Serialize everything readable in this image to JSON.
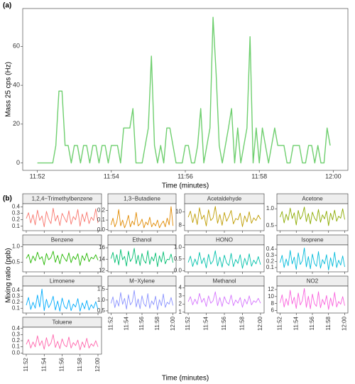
{
  "chart_data": [
    {
      "type": "line",
      "panel_label": "(a)",
      "x_label": "Time (minutes)",
      "y_label": "Mass 25 cps (Hz)",
      "categories": [
        "11:52",
        null,
        null,
        null,
        null,
        null,
        null,
        null,
        null,
        null,
        null,
        null,
        null,
        null,
        null,
        null,
        null,
        null,
        null,
        null,
        null,
        null,
        null,
        null,
        "11:54",
        null,
        null,
        null,
        null,
        null,
        null,
        null,
        null,
        null,
        null,
        null,
        null,
        null,
        null,
        null,
        null,
        null,
        null,
        null,
        null,
        null,
        null,
        null,
        "11:56",
        null,
        null,
        null,
        null,
        null,
        null,
        null,
        null,
        null,
        null,
        null,
        null,
        null,
        null,
        null,
        null,
        null,
        null,
        null,
        null,
        null,
        null,
        null,
        "11:58",
        null,
        null,
        null,
        null,
        null,
        null,
        null,
        null,
        null,
        null,
        null,
        null,
        null,
        null,
        null,
        null,
        null,
        null,
        null,
        null,
        null,
        null,
        null,
        "12:00"
      ],
      "series": [
        {
          "color": "#6fcf6f",
          "values": [
            0,
            0,
            0,
            0,
            0,
            0,
            9,
            37,
            37,
            9,
            9,
            0,
            9,
            9,
            0,
            9,
            9,
            0,
            9,
            9,
            0,
            9,
            9,
            0,
            9,
            9,
            9,
            0,
            18,
            18,
            18,
            28,
            0,
            0,
            0,
            9,
            18,
            55,
            9,
            0,
            9,
            0,
            18,
            18,
            9,
            0,
            0,
            0,
            9,
            9,
            0,
            0,
            9,
            28,
            0,
            9,
            18,
            75,
            46,
            9,
            0,
            9,
            18,
            28,
            0,
            18,
            0,
            9,
            18,
            65,
            0,
            18,
            0,
            18,
            9,
            0,
            9,
            18,
            9,
            9,
            9,
            0,
            0,
            9,
            9,
            9,
            0,
            0,
            9,
            9,
            0,
            9,
            0,
            0,
            18,
            9,
            null
          ]
        }
      ],
      "ylim": [
        -3.8,
        79.5
      ],
      "yticks": [
        0,
        20,
        40,
        60
      ]
    },
    {
      "type": "facet-line",
      "panel_label": "(b)",
      "x_label": "Time (minutes)",
      "y_label": "Mixing ratio (ppb)",
      "categories": [
        "11:52",
        null,
        null,
        null,
        null,
        null,
        null,
        null,
        "11:54",
        null,
        null,
        null,
        null,
        null,
        null,
        null,
        "11:56",
        null,
        null,
        null,
        null,
        null,
        null,
        null,
        "11:58",
        null,
        null,
        null,
        null,
        null,
        null,
        null,
        "12:00"
      ],
      "panels": [
        {
          "name": "1,2,4−Trimethylbenzene",
          "color": "#F8766D",
          "ylim": [
            0.03,
            0.45
          ],
          "yticks": [
            0.1,
            0.2,
            0.3,
            0.4
          ],
          "values": [
            0.22,
            0.31,
            0.15,
            0.28,
            0.12,
            0.35,
            0.19,
            0.26,
            0.09,
            0.33,
            0.21,
            0.14,
            0.38,
            0.18,
            0.27,
            0.11,
            0.3,
            0.23,
            0.16,
            0.34,
            0.13,
            0.25,
            0.2,
            0.36,
            0.1,
            0.29,
            0.17,
            0.32,
            0.14,
            0.24,
            0.19,
            0.37,
            0.15
          ]
        },
        {
          "name": "1,3−Butadiene",
          "color": "#E18A00",
          "ylim": [
            -0.01,
            0.27
          ],
          "yticks": [
            {
              "value": 0,
              "label": "0.0"
            },
            0.1,
            0.2
          ],
          "values": [
            0.05,
            0.12,
            0.03,
            0.08,
            0.21,
            0.04,
            0.1,
            0.02,
            0.07,
            0.15,
            0.03,
            0.09,
            0.05,
            0.18,
            0.04,
            0.06,
            0.11,
            0.02,
            0.08,
            0.05,
            0.13,
            0.03,
            0.07,
            0.04,
            0.1,
            0.02,
            0.06,
            0.09,
            0.03,
            0.12,
            0.05,
            0.24,
            0.04
          ]
        },
        {
          "name": "Acetaldehyde",
          "color": "#BE9C00",
          "ylim": [
            7.2,
            11.2
          ],
          "yticks": [
            8,
            10
          ],
          "values": [
            9.2,
            10.1,
            8.4,
            9.7,
            8.1,
            10.6,
            8.9,
            9.5,
            7.9,
            10.3,
            8.7,
            9.1,
            10.8,
            8.3,
            9.6,
            8.0,
            9.9,
            8.6,
            9.3,
            10.2,
            8.2,
            9.0,
            8.8,
            9.8,
            7.8,
            9.4,
            8.5,
            10.0,
            8.3,
            9.1,
            8.7,
            9.5,
            8.9
          ]
        },
        {
          "name": "Acetone",
          "color": "#8CAB00",
          "ylim": [
            0.35,
            1.15
          ],
          "yticks": [
            0.5,
            {
              "value": 1,
              "label": "1.0"
            }
          ],
          "values": [
            0.75,
            0.92,
            0.58,
            0.84,
            0.66,
            1.02,
            0.71,
            0.88,
            0.52,
            0.95,
            0.69,
            0.8,
            1.05,
            0.62,
            0.86,
            0.55,
            0.9,
            0.73,
            0.64,
            0.98,
            0.6,
            0.82,
            0.7,
            0.93,
            0.5,
            0.87,
            0.67,
            0.96,
            0.63,
            0.78,
            0.72,
            1.0,
            0.68
          ]
        },
        {
          "name": "Benzene",
          "color": "#24B700",
          "ylim": [
            0.2,
            1.05
          ],
          "yticks": [
            0.5,
            {
              "value": 1,
              "label": "1.0"
            }
          ],
          "values": [
            0.62,
            0.75,
            0.48,
            0.7,
            0.55,
            0.82,
            0.6,
            0.68,
            0.42,
            0.78,
            0.58,
            0.65,
            0.85,
            0.5,
            0.72,
            0.45,
            0.76,
            0.63,
            0.53,
            0.8,
            0.49,
            0.69,
            0.59,
            0.77,
            0.4,
            0.71,
            0.56,
            0.79,
            0.52,
            0.66,
            0.61,
            0.74,
            0.57
          ]
        },
        {
          "name": "Ethanol",
          "color": "#00BE70",
          "ylim": [
            11.8,
            16.5
          ],
          "yticks": [
            12,
            14,
            16
          ],
          "values": [
            14.1,
            15.2,
            13.4,
            14.8,
            13.0,
            15.7,
            13.9,
            14.5,
            12.8,
            15.4,
            13.6,
            14.2,
            15.9,
            13.2,
            14.7,
            12.9,
            15.0,
            13.8,
            13.3,
            15.5,
            13.1,
            14.4,
            13.7,
            15.1,
            12.7,
            14.6,
            13.5,
            15.3,
            13.2,
            14.0,
            13.9,
            14.9,
            13.4
          ]
        },
        {
          "name": "HONO",
          "color": "#00C1AB",
          "ylim": [
            -0.05,
            1.1
          ],
          "yticks": [
            {
              "value": 0,
              "label": "0.0"
            },
            0.5,
            {
              "value": 1,
              "label": "1.0"
            }
          ],
          "values": [
            0.35,
            0.62,
            0.18,
            0.5,
            0.25,
            0.78,
            0.3,
            0.55,
            0.12,
            0.7,
            0.28,
            0.42,
            0.85,
            0.2,
            0.58,
            0.15,
            0.66,
            0.33,
            0.22,
            0.74,
            0.17,
            0.48,
            0.31,
            0.68,
            0.1,
            0.53,
            0.24,
            0.72,
            0.19,
            0.45,
            0.29,
            0.6,
            0.26
          ]
        },
        {
          "name": "Isoprene",
          "color": "#00BBDA",
          "ylim": [
            0.03,
            0.47
          ],
          "yticks": [
            0.1,
            0.2,
            0.3,
            0.4
          ],
          "values": [
            0.18,
            0.3,
            0.1,
            0.24,
            0.13,
            0.38,
            0.16,
            0.27,
            0.07,
            0.34,
            0.15,
            0.21,
            0.42,
            0.11,
            0.28,
            0.08,
            0.32,
            0.17,
            0.12,
            0.36,
            0.09,
            0.23,
            0.16,
            0.31,
            0.06,
            0.26,
            0.12,
            0.35,
            0.1,
            0.22,
            0.14,
            0.29,
            0.11
          ]
        },
        {
          "name": "Limonene",
          "color": "#00ACFC",
          "ylim": [
            0.02,
            0.47
          ],
          "yticks": [
            0.1,
            0.2,
            0.3,
            0.4
          ],
          "values": [
            0.15,
            0.28,
            0.08,
            0.2,
            0.1,
            0.32,
            0.12,
            0.42,
            0.06,
            0.25,
            0.11,
            0.18,
            0.3,
            0.07,
            0.22,
            0.05,
            0.27,
            0.13,
            0.09,
            0.24,
            0.06,
            0.17,
            0.12,
            0.26,
            0.05,
            0.19,
            0.09,
            0.23,
            0.07,
            0.16,
            0.1,
            0.21,
            0.08
          ]
        },
        {
          "name": "M−Xylene",
          "color": "#8B93FF",
          "ylim": [
            0.4,
            1.65
          ],
          "yticks": [
            0.5,
            {
              "value": 1,
              "label": "1.0"
            },
            1.5
          ],
          "values": [
            0.85,
            1.15,
            0.65,
            1.0,
            0.72,
            1.35,
            0.8,
            1.08,
            0.58,
            1.25,
            0.78,
            0.92,
            1.45,
            0.68,
            1.05,
            0.6,
            1.2,
            0.83,
            0.7,
            1.3,
            0.62,
            0.96,
            0.79,
            1.18,
            0.55,
            1.02,
            0.74,
            1.28,
            0.66,
            0.9,
            0.81,
            1.12,
            0.75
          ]
        },
        {
          "name": "Methanol",
          "color": "#D575FE",
          "ylim": [
            0.9,
            4.2
          ],
          "yticks": [
            1,
            2,
            3,
            4
          ],
          "values": [
            2.3,
            2.9,
            1.9,
            2.6,
            2.0,
            3.3,
            2.2,
            2.7,
            1.7,
            3.0,
            2.1,
            2.4,
            3.5,
            1.8,
            2.8,
            1.7,
            2.9,
            2.2,
            2.0,
            3.1,
            1.8,
            2.5,
            2.1,
            2.8,
            1.6,
            2.6,
            2.0,
            3.0,
            1.9,
            2.4,
            2.2,
            2.7,
            2.1
          ]
        },
        {
          "name": "NO2",
          "color": "#F962DD",
          "ylim": [
            5.3,
            13
          ],
          "yticks": [
            6,
            8,
            10,
            12
          ],
          "values": [
            8.2,
            10.5,
            7.0,
            9.4,
            7.5,
            11.8,
            7.9,
            9.8,
            6.6,
            11.0,
            7.6,
            8.8,
            12.3,
            6.9,
            10.1,
            6.5,
            10.7,
            8.0,
            7.2,
            11.4,
            6.8,
            9.2,
            7.7,
            10.3,
            6.3,
            9.6,
            7.3,
            11.2,
            7.0,
            8.6,
            7.8,
            10.0,
            7.4
          ]
        },
        {
          "name": "Toluene",
          "color": "#FF65AC",
          "ylim": [
            -0.02,
            0.42
          ],
          "yticks": [
            {
              "value": 0,
              "label": "0.0"
            },
            0.1,
            0.2,
            0.3,
            0.4
          ],
          "values": [
            0.14,
            0.22,
            0.08,
            0.18,
            0.1,
            0.28,
            0.12,
            0.2,
            0.06,
            0.25,
            0.11,
            0.16,
            0.3,
            0.09,
            0.19,
            0.07,
            0.23,
            0.13,
            0.1,
            0.26,
            0.08,
            0.17,
            0.12,
            0.21,
            0.05,
            0.18,
            0.09,
            0.24,
            0.08,
            0.15,
            0.11,
            0.2,
            0.1
          ]
        }
      ]
    }
  ]
}
